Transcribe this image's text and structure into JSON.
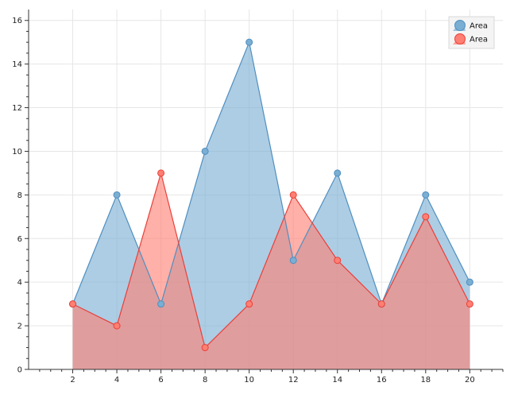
{
  "chart_data": {
    "type": "area",
    "title": "",
    "xlabel": "",
    "ylabel": "",
    "xlim": [
      0,
      21.5
    ],
    "ylim": [
      0,
      16.5
    ],
    "x_ticks": [
      2,
      4,
      6,
      8,
      10,
      12,
      14,
      16,
      18,
      20
    ],
    "y_ticks": [
      0,
      2,
      4,
      6,
      8,
      10,
      12,
      14,
      16
    ],
    "grid": true,
    "legend_position": "top-right",
    "x": [
      2,
      4,
      6,
      8,
      10,
      12,
      14,
      16,
      18,
      20
    ],
    "series": [
      {
        "name": "Area",
        "values": [
          3,
          8,
          3,
          10,
          15,
          5,
          9,
          3,
          8,
          4
        ],
        "color": "#4f8fc0",
        "fill": "#7aaed3"
      },
      {
        "name": "Area",
        "values": [
          3,
          2,
          9,
          1,
          3,
          8,
          5,
          3,
          7,
          3
        ],
        "color": "#e8403a",
        "fill": "#ff7f72"
      }
    ]
  }
}
